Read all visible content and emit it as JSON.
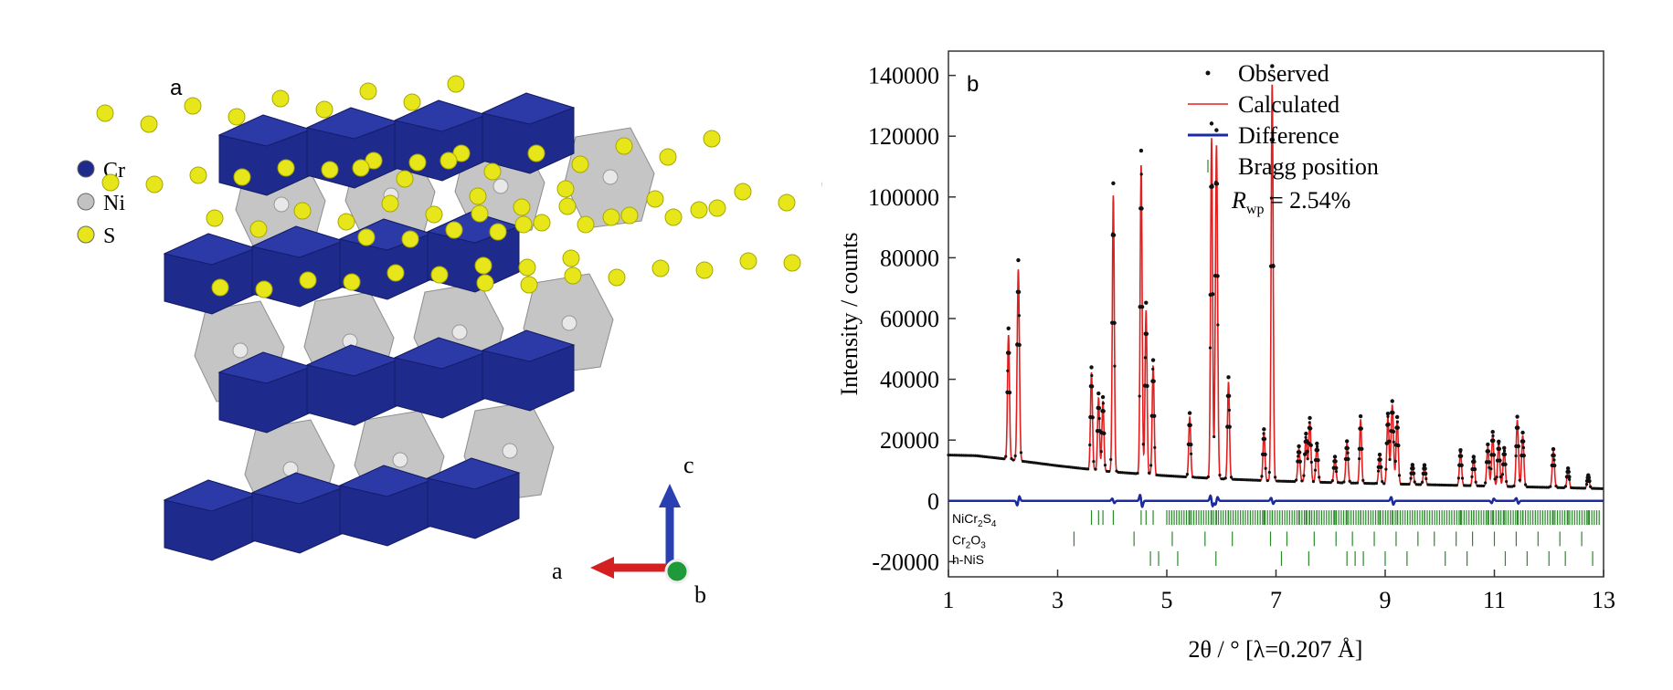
{
  "structure_panel": {
    "panel_label": "a",
    "legend": [
      {
        "label": "Cr",
        "color": "#1e2a8c"
      },
      {
        "label": "Ni",
        "color": "#c2c2c2"
      },
      {
        "label": "S",
        "color": "#e6e61a"
      }
    ],
    "axes_labels": {
      "a": "a",
      "b": "b",
      "c": "c"
    },
    "axis_colors": {
      "a": "#d42020",
      "b": "#1f9a3a",
      "c": "#2a3fb0"
    }
  },
  "chart_data": {
    "type": "line",
    "panel_label": "b",
    "xlabel": "2θ / ° [λ=0.207 Å]",
    "ylabel": "Intensity / counts",
    "xlim": [
      1,
      13
    ],
    "ylim": [
      -25000,
      148000
    ],
    "xticks": [
      1,
      3,
      5,
      7,
      9,
      11,
      13
    ],
    "yticks": [
      -20000,
      0,
      20000,
      40000,
      60000,
      80000,
      100000,
      120000,
      140000
    ],
    "legend_position": "top-right",
    "legend": [
      {
        "name": "Observed",
        "style": "dot",
        "color": "#111111"
      },
      {
        "name": "Calculated",
        "style": "line",
        "color": "#e02020"
      },
      {
        "name": "Difference",
        "style": "line",
        "color": "#1a2aa0"
      },
      {
        "name": "Bragg position",
        "style": "tick",
        "color": "#2a8a2a"
      }
    ],
    "annotation": {
      "symbol": "R",
      "subscript": "wp",
      "text": " = 2.54%"
    },
    "background": [
      [
        1,
        15000
      ],
      [
        1.5,
        14800
      ],
      [
        2,
        13800
      ],
      [
        3,
        11500
      ],
      [
        4,
        9500
      ],
      [
        5,
        8200
      ],
      [
        6,
        7200
      ],
      [
        7,
        6500
      ],
      [
        8,
        6000
      ],
      [
        9,
        5600
      ],
      [
        10,
        5200
      ],
      [
        11,
        4800
      ],
      [
        12,
        4400
      ],
      [
        13,
        4000
      ]
    ],
    "peaks": [
      {
        "x": 2.1,
        "h": 41000,
        "w": 0.018
      },
      {
        "x": 2.28,
        "h": 63000,
        "w": 0.02
      },
      {
        "x": 3.62,
        "h": 32000,
        "w": 0.018
      },
      {
        "x": 3.75,
        "h": 24000,
        "w": 0.018
      },
      {
        "x": 3.83,
        "h": 23000,
        "w": 0.018
      },
      {
        "x": 4.02,
        "h": 91000,
        "w": 0.018
      },
      {
        "x": 4.53,
        "h": 102000,
        "w": 0.018
      },
      {
        "x": 4.62,
        "h": 54000,
        "w": 0.018
      },
      {
        "x": 4.75,
        "h": 36000,
        "w": 0.018
      },
      {
        "x": 5.42,
        "h": 20000,
        "w": 0.018
      },
      {
        "x": 5.82,
        "h": 112000,
        "w": 0.018
      },
      {
        "x": 5.91,
        "h": 110000,
        "w": 0.02
      },
      {
        "x": 6.13,
        "h": 32000,
        "w": 0.018
      },
      {
        "x": 6.78,
        "h": 16000,
        "w": 0.018
      },
      {
        "x": 6.93,
        "h": 131000,
        "w": 0.018
      },
      {
        "x": 7.42,
        "h": 11000,
        "w": 0.02
      },
      {
        "x": 7.55,
        "h": 15000,
        "w": 0.02
      },
      {
        "x": 7.62,
        "h": 20000,
        "w": 0.02
      },
      {
        "x": 7.75,
        "h": 12000,
        "w": 0.02
      },
      {
        "x": 8.08,
        "h": 8000,
        "w": 0.02
      },
      {
        "x": 8.3,
        "h": 13000,
        "w": 0.02
      },
      {
        "x": 8.55,
        "h": 21000,
        "w": 0.018
      },
      {
        "x": 8.9,
        "h": 9000,
        "w": 0.02
      },
      {
        "x": 9.05,
        "h": 22000,
        "w": 0.02
      },
      {
        "x": 9.13,
        "h": 26000,
        "w": 0.022
      },
      {
        "x": 9.22,
        "h": 21000,
        "w": 0.02
      },
      {
        "x": 9.5,
        "h": 6000,
        "w": 0.02
      },
      {
        "x": 9.72,
        "h": 6000,
        "w": 0.02
      },
      {
        "x": 10.38,
        "h": 11000,
        "w": 0.02
      },
      {
        "x": 10.62,
        "h": 9000,
        "w": 0.02
      },
      {
        "x": 10.88,
        "h": 13000,
        "w": 0.02
      },
      {
        "x": 10.97,
        "h": 17000,
        "w": 0.02
      },
      {
        "x": 11.08,
        "h": 14000,
        "w": 0.02
      },
      {
        "x": 11.18,
        "h": 12000,
        "w": 0.02
      },
      {
        "x": 11.42,
        "h": 22000,
        "w": 0.02
      },
      {
        "x": 11.52,
        "h": 17000,
        "w": 0.02
      },
      {
        "x": 12.08,
        "h": 12000,
        "w": 0.02
      },
      {
        "x": 12.35,
        "h": 6000,
        "w": 0.02
      },
      {
        "x": 12.72,
        "h": 4000,
        "w": 0.02
      }
    ],
    "difference": {
      "baseline": 0,
      "wiggles": [
        [
          2.28,
          -3000
        ],
        [
          4.02,
          1500
        ],
        [
          4.53,
          4000
        ],
        [
          5.82,
          3500
        ],
        [
          5.91,
          -2500
        ],
        [
          6.93,
          2000
        ],
        [
          9.13,
          2500
        ],
        [
          10.97,
          -1500
        ],
        [
          11.42,
          1800
        ]
      ]
    },
    "bragg_rows": [
      {
        "phase": "NiCr",
        "sub1": "2",
        "mid": "S",
        "sub2": "4",
        "positions": [
          3.62,
          3.75,
          3.83,
          4.02,
          4.53,
          4.62,
          4.75,
          5.42,
          5.82,
          5.91,
          6.13,
          6.78,
          6.93,
          7.42,
          7.55,
          7.62,
          7.75,
          8.08,
          8.3,
          8.55,
          8.9,
          9.05,
          9.13,
          9.22,
          9.5,
          9.72,
          10.38,
          10.62,
          10.88,
          10.97,
          11.08,
          11.18,
          11.42,
          11.52,
          12.08,
          12.35,
          12.72
        ],
        "dense_from": 5.0
      },
      {
        "phase": "Cr",
        "sub1": "2",
        "mid": "O",
        "sub2": "3",
        "positions": [
          3.3,
          4.4,
          5.1,
          5.7,
          6.2,
          6.9,
          7.2,
          7.7,
          8.1,
          8.4,
          8.8,
          9.2,
          9.6,
          9.9,
          10.3,
          10.6,
          11.0,
          11.4,
          11.8,
          12.2,
          12.6
        ]
      },
      {
        "phase": "h-NiS",
        "sub1": "",
        "mid": "",
        "sub2": "",
        "positions": [
          4.7,
          4.85,
          5.2,
          5.9,
          7.1,
          7.6,
          8.3,
          8.45,
          8.6,
          9.0,
          9.4,
          10.1,
          10.5,
          11.2,
          11.6,
          12.0,
          12.3,
          12.8
        ]
      }
    ]
  }
}
